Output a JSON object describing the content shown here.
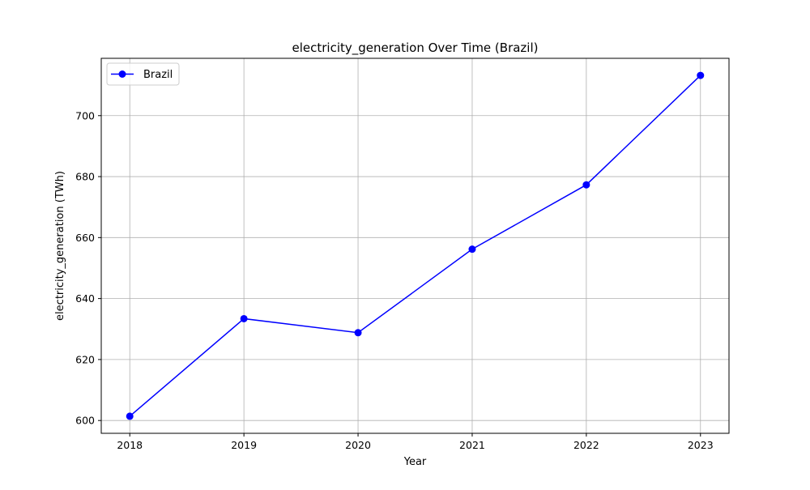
{
  "chart_data": {
    "type": "line",
    "title": "electricity_generation Over Time (Brazil)",
    "xlabel": "Year",
    "ylabel": "electricity_generation (TWh)",
    "x": [
      2018,
      2019,
      2020,
      2021,
      2022,
      2023
    ],
    "series": [
      {
        "name": "Brazil",
        "color": "#0000ff",
        "marker": "circle",
        "values": [
          601.4,
          633.4,
          628.8,
          656.2,
          677.3,
          713.2
        ]
      }
    ],
    "xticks": [
      "2018",
      "2019",
      "2020",
      "2021",
      "2022",
      "2023"
    ],
    "yticks": [
      600,
      620,
      640,
      660,
      680,
      700
    ],
    "xlim": [
      2017.75,
      2023.25
    ],
    "ylim": [
      595.8,
      718.8
    ],
    "grid": true,
    "legend_position": "upper-left"
  }
}
